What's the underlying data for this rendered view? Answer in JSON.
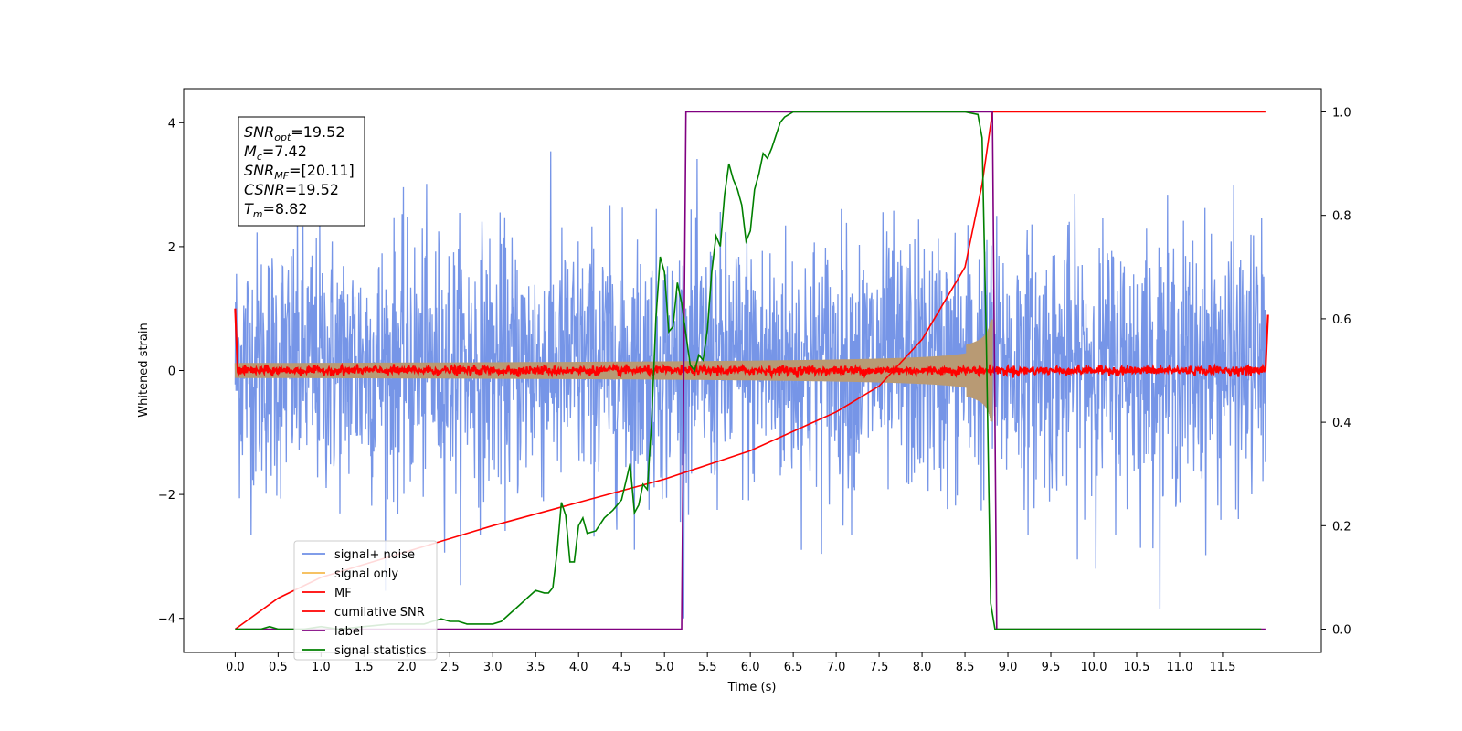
{
  "chart_data": {
    "type": "line",
    "xlabel": "Time (s)",
    "ylabel": "Whitened strain",
    "xlim": [
      -0.6,
      12.65
    ],
    "ylim": [
      -4.55,
      4.55
    ],
    "y2lim": [
      -0.045,
      1.045
    ],
    "xticks": [
      "0.0",
      "0.5",
      "1.0",
      "1.5",
      "2.0",
      "2.5",
      "3.0",
      "3.5",
      "4.0",
      "4.5",
      "5.0",
      "5.5",
      "6.0",
      "6.5",
      "7.0",
      "7.5",
      "8.0",
      "8.5",
      "9.0",
      "9.5",
      "10.0",
      "10.5",
      "11.0",
      "11.5"
    ],
    "yticks": [
      "4",
      "2",
      "0",
      "−2",
      "−4"
    ],
    "y2ticks": [
      "1.0",
      "0.8",
      "0.6",
      "0.4",
      "0.2",
      "0.0"
    ],
    "colors": {
      "signal_noise": "#6f8fe6",
      "signal_only": "#f5b94e",
      "signal_overlap": "#b89a74",
      "mf": "#ff0000",
      "cumulative_snr": "#ff0000",
      "label": "#800080",
      "signal_statistics": "#008000"
    },
    "series": [
      {
        "name": "signal+ noise",
        "axis": "left",
        "t_start": 0.0,
        "t_end": 12.0,
        "noise_sigma": 1.0
      },
      {
        "name": "signal only",
        "axis": "left",
        "t_start": 0.0,
        "t_end": 8.82,
        "amplitude_start": 0.12,
        "amplitude_peak": 1.1
      },
      {
        "name": "MF",
        "axis": "left",
        "x": [
          0.0,
          0.03,
          12.0,
          12.03
        ],
        "y": [
          1.0,
          0.0,
          0.0,
          0.9
        ]
      },
      {
        "name": "cumilative SNR",
        "axis": "right",
        "x": [
          0.0,
          0.5,
          1.0,
          2.0,
          3.0,
          4.0,
          5.0,
          6.0,
          7.0,
          7.5,
          8.0,
          8.5,
          8.7,
          8.82,
          12.0
        ],
        "y": [
          0.0,
          0.06,
          0.1,
          0.15,
          0.2,
          0.245,
          0.29,
          0.345,
          0.42,
          0.47,
          0.56,
          0.7,
          0.86,
          1.0,
          1.0
        ]
      },
      {
        "name": "label",
        "axis": "right",
        "x": [
          0.0,
          5.2,
          5.25,
          8.82,
          8.87,
          12.0
        ],
        "y": [
          0.0,
          0.0,
          1.0,
          1.0,
          0.0,
          0.0
        ]
      },
      {
        "name": "signal statistics",
        "axis": "right",
        "x": [
          0.0,
          0.3,
          0.4,
          0.5,
          0.8,
          1.0,
          1.2,
          1.5,
          1.8,
          2.0,
          2.2,
          2.3,
          2.4,
          2.5,
          2.6,
          2.7,
          2.8,
          3.0,
          3.1,
          3.2,
          3.3,
          3.4,
          3.5,
          3.6,
          3.65,
          3.7,
          3.75,
          3.8,
          3.85,
          3.9,
          3.95,
          4.0,
          4.05,
          4.1,
          4.2,
          4.3,
          4.4,
          4.5,
          4.6,
          4.65,
          4.7,
          4.75,
          4.8,
          4.85,
          4.9,
          4.95,
          5.0,
          5.05,
          5.1,
          5.15,
          5.2,
          5.25,
          5.3,
          5.35,
          5.4,
          5.45,
          5.5,
          5.55,
          5.6,
          5.65,
          5.7,
          5.75,
          5.8,
          5.85,
          5.9,
          5.95,
          6.0,
          6.05,
          6.1,
          6.15,
          6.2,
          6.25,
          6.3,
          6.35,
          6.4,
          6.5,
          6.6,
          6.7,
          6.8,
          7.0,
          7.5,
          8.0,
          8.5,
          8.65,
          8.7,
          8.75,
          8.8,
          8.85,
          8.9,
          9.0,
          10.0,
          11.0,
          11.95
        ],
        "y": [
          0.0,
          0.0,
          0.005,
          0.0,
          0.0,
          0.005,
          0.0,
          0.005,
          0.01,
          0.01,
          0.01,
          0.015,
          0.02,
          0.015,
          0.015,
          0.01,
          0.01,
          0.01,
          0.015,
          0.03,
          0.045,
          0.06,
          0.075,
          0.07,
          0.07,
          0.08,
          0.15,
          0.245,
          0.22,
          0.13,
          0.13,
          0.2,
          0.215,
          0.185,
          0.19,
          0.215,
          0.23,
          0.25,
          0.32,
          0.225,
          0.24,
          0.28,
          0.27,
          0.4,
          0.6,
          0.72,
          0.69,
          0.575,
          0.585,
          0.67,
          0.63,
          0.57,
          0.51,
          0.5,
          0.53,
          0.52,
          0.58,
          0.69,
          0.76,
          0.74,
          0.84,
          0.9,
          0.87,
          0.85,
          0.82,
          0.75,
          0.77,
          0.85,
          0.88,
          0.92,
          0.91,
          0.93,
          0.955,
          0.98,
          0.99,
          1.0,
          1.0,
          1.0,
          1.0,
          1.0,
          1.0,
          1.0,
          1.0,
          0.995,
          0.95,
          0.55,
          0.05,
          0.0,
          0.0,
          0.0,
          0.0,
          0.0,
          0.0
        ]
      }
    ],
    "legend": {
      "placement": "lower-left",
      "entries": [
        "signal+ noise",
        "signal only",
        "MF",
        "cumilative SNR",
        "label",
        "signal statistics"
      ]
    },
    "annotation": {
      "lines": [
        {
          "var": "SNR",
          "sub": "opt",
          "value": "=19.52"
        },
        {
          "var": "M",
          "sub": "c",
          "value": "=7.42"
        },
        {
          "var": "SNR",
          "sub": "MF",
          "value": "=[20.11]"
        },
        {
          "var": "CSNR",
          "sub": "",
          "value": "=19.52"
        },
        {
          "var": "T",
          "sub": "m",
          "value": "=8.82"
        }
      ]
    }
  }
}
